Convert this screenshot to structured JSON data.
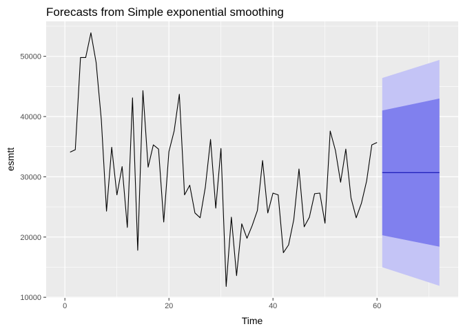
{
  "chart_data": {
    "type": "line",
    "title": "Forecasts from Simple exponential smoothing",
    "xlabel": "Time",
    "ylabel": "esmtt",
    "xlim": [
      -3.6,
      75.6
    ],
    "ylim": [
      9900,
      55800
    ],
    "x_ticks": [
      0,
      20,
      40,
      60
    ],
    "y_ticks": [
      10000,
      20000,
      30000,
      40000,
      50000
    ],
    "x_tick_labels": [
      "0",
      "20",
      "40",
      "60"
    ],
    "y_tick_labels": [
      "10000",
      "20000",
      "30000",
      "40000",
      "50000"
    ],
    "grid": true,
    "series": [
      {
        "role": "observed",
        "x": [
          1,
          2,
          3,
          4,
          5,
          6,
          7,
          8,
          9,
          10,
          11,
          12,
          13,
          14,
          15,
          16,
          17,
          18,
          19,
          20,
          21,
          22,
          23,
          24,
          25,
          26,
          27,
          28,
          29,
          30,
          31,
          32,
          33,
          34,
          35,
          36,
          37,
          38,
          39,
          40,
          41,
          42,
          43,
          44,
          45,
          46,
          47,
          48,
          49,
          50,
          51,
          52,
          53,
          54,
          55,
          56,
          57,
          58,
          59,
          60
        ],
        "y": [
          34100,
          34500,
          49800,
          49800,
          53900,
          49000,
          39500,
          24300,
          34900,
          27000,
          31700,
          21600,
          43100,
          17800,
          44300,
          31600,
          35300,
          34600,
          22500,
          34200,
          37600,
          43700,
          27000,
          28600,
          24000,
          23200,
          28300,
          36200,
          24800,
          34700,
          11800,
          23300,
          13600,
          22200,
          19800,
          21900,
          24400,
          32700,
          24000,
          27300,
          27000,
          17400,
          18700,
          22900,
          31300,
          21700,
          23300,
          27200,
          27300,
          22300,
          37600,
          34400,
          29100,
          34600,
          26500,
          23200,
          25600,
          29300,
          35300,
          35700
        ]
      },
      {
        "role": "point-forecast",
        "x": [
          61,
          72
        ],
        "y": [
          30700,
          30700
        ]
      }
    ],
    "forecast_intervals": {
      "x": [
        61,
        72
      ],
      "lower_80": [
        20300,
        18400
      ],
      "upper_80": [
        41000,
        43000
      ],
      "lower_95": [
        15000,
        11900
      ],
      "upper_95": [
        46400,
        49400
      ]
    },
    "colors": {
      "panel_background": "#ebebeb",
      "grid": "#ffffff",
      "observed_line": "#000000",
      "forecast_line": "#0000aa",
      "band_80": "#8080ee",
      "band_95": "#c4c4f6"
    }
  }
}
